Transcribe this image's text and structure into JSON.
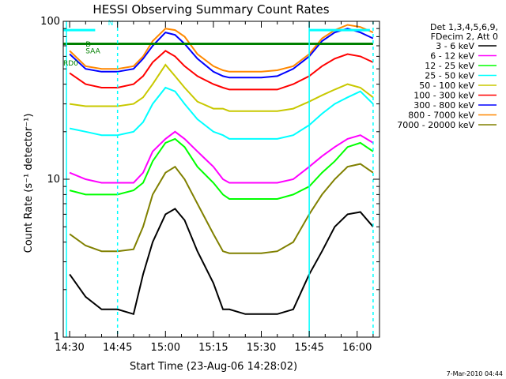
{
  "chart_data": {
    "type": "line",
    "title": "HESSI Observing Summary Count Rates",
    "xlabel": "Start Time (23-Aug-06 14:28:02)",
    "ylabel": "Count Rate (s⁻¹ detector⁻¹)",
    "y_scale": "log",
    "ylim": [
      1,
      100
    ],
    "xlim": [
      "14:28",
      "16:07"
    ],
    "x_ticks": [
      "14:30",
      "14:45",
      "15:00",
      "15:15",
      "15:30",
      "15:45",
      "16:00"
    ],
    "y_ticks": [
      "1",
      "10",
      "100"
    ],
    "grid": false,
    "legend_position": "top-right",
    "legend_header": [
      "Det 1,3,4,5,6,9,",
      "FDecim 2, Att 0"
    ],
    "timestamp": "7-Mar-2010 04:44",
    "annotations": [
      "RD0",
      "N",
      "SAA",
      "D"
    ],
    "x": [
      "14:30",
      "14:35",
      "14:40",
      "14:45",
      "14:50",
      "14:53",
      "14:56",
      "15:00",
      "15:03",
      "15:06",
      "15:10",
      "15:15",
      "15:18",
      "15:20",
      "15:25",
      "15:30",
      "15:35",
      "15:40",
      "15:45",
      "15:49",
      "15:53",
      "15:57",
      "16:01",
      "16:05"
    ],
    "series": [
      {
        "name": "3 - 6 keV",
        "color": "#000000",
        "values": [
          2.5,
          1.8,
          1.5,
          1.5,
          1.4,
          2.5,
          4.0,
          6.0,
          6.5,
          5.5,
          3.5,
          2.2,
          1.5,
          1.5,
          1.4,
          1.4,
          1.4,
          1.5,
          2.5,
          3.5,
          5.0,
          6.0,
          6.2,
          5.0
        ]
      },
      {
        "name": "6 - 12 keV",
        "color": "#ff00ff",
        "values": [
          11,
          10,
          9.5,
          9.5,
          9.5,
          11,
          15,
          18,
          20,
          18,
          15,
          12,
          10,
          9.5,
          9.5,
          9.5,
          9.5,
          10,
          12,
          14,
          16,
          18,
          19,
          17
        ]
      },
      {
        "name": "12 - 25 keV",
        "color": "#00ff00",
        "values": [
          8.5,
          8,
          8,
          8,
          8.5,
          9.5,
          13,
          17,
          18,
          16,
          12,
          9.5,
          8,
          7.5,
          7.5,
          7.5,
          7.5,
          8,
          9,
          11,
          13,
          16,
          17,
          15
        ]
      },
      {
        "name": "25 - 50 keV",
        "color": "#00ffff",
        "values": [
          21,
          20,
          19,
          19,
          20,
          23,
          30,
          38,
          36,
          30,
          24,
          20,
          19,
          18,
          18,
          18,
          18,
          19,
          22,
          26,
          30,
          33,
          36,
          30
        ]
      },
      {
        "name": "50 - 100 keV",
        "color": "#c8c800",
        "values": [
          30,
          29,
          29,
          29,
          30,
          33,
          40,
          53,
          45,
          38,
          31,
          28,
          28,
          27,
          27,
          27,
          27,
          28,
          31,
          34,
          37,
          40,
          38,
          33
        ]
      },
      {
        "name": "100 - 300 keV",
        "color": "#ff0000",
        "values": [
          47,
          40,
          38,
          38,
          40,
          45,
          55,
          65,
          60,
          52,
          45,
          40,
          38,
          37,
          37,
          37,
          37,
          40,
          45,
          52,
          58,
          62,
          60,
          55
        ]
      },
      {
        "name": "300 - 800 keV",
        "color": "#0000ff",
        "values": [
          62,
          50,
          48,
          48,
          50,
          58,
          70,
          85,
          82,
          72,
          58,
          48,
          45,
          44,
          44,
          44,
          45,
          50,
          60,
          75,
          85,
          90,
          85,
          78
        ]
      },
      {
        "name": "800 - 7000 keV",
        "color": "#ff8800",
        "values": [
          65,
          52,
          50,
          50,
          52,
          60,
          75,
          90,
          88,
          80,
          62,
          52,
          49,
          48,
          48,
          48,
          49,
          52,
          62,
          78,
          88,
          95,
          92,
          85
        ]
      },
      {
        "name": "7000 - 20000 keV",
        "color": "#808000",
        "values": [
          4.5,
          3.8,
          3.5,
          3.5,
          3.6,
          5,
          8,
          11,
          12,
          10,
          7,
          4.5,
          3.5,
          3.4,
          3.4,
          3.4,
          3.5,
          4,
          6,
          8,
          10,
          12,
          12.5,
          11
        ]
      }
    ]
  }
}
